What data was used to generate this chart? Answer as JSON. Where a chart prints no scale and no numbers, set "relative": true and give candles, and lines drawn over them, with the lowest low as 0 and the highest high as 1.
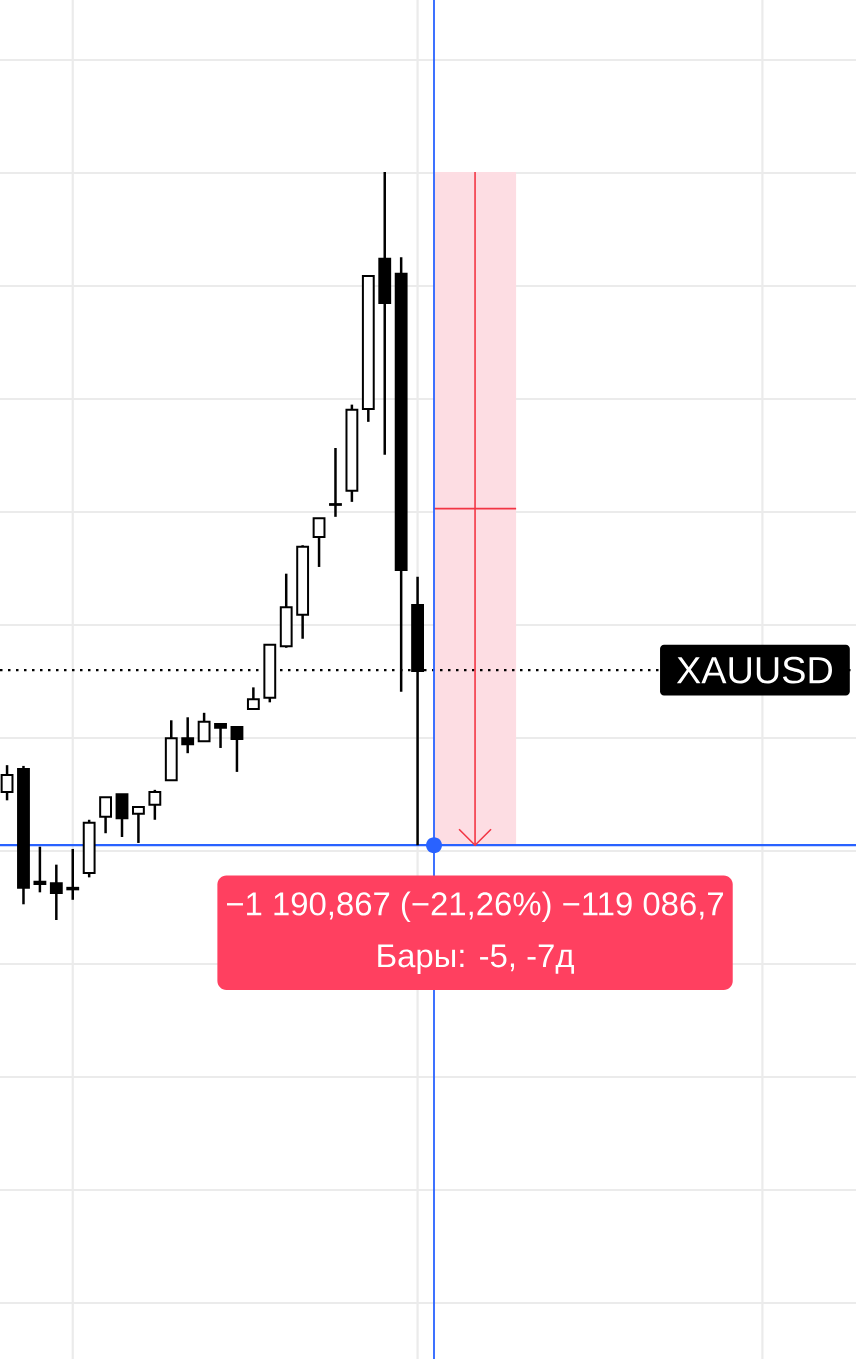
{
  "chart_data": {
    "type": "candlestick",
    "relative": true,
    "grid": true,
    "categories": [
      null,
      null,
      null,
      null,
      null,
      null,
      null,
      null,
      null,
      null,
      null,
      null,
      null,
      null,
      null,
      null,
      null,
      null,
      null,
      null,
      null,
      null,
      null,
      null,
      null,
      null,
      null,
      null,
      null,
      null,
      null,
      null,
      null,
      null,
      null,
      null,
      null,
      null,
      null,
      null,
      null,
      null,
      null,
      null,
      null,
      null,
      null,
      null,
      null,
      null,
      null,
      null
    ],
    "ohlc": [
      [
        0.171,
        0.207,
        0.16,
        0.194
      ],
      [
        0.202,
        0.206,
        0.021,
        0.043
      ],
      [
        0.051,
        0.098,
        0.037,
        0.048
      ],
      [
        0.049,
        0.074,
        0,
        0.036
      ],
      [
        0.043,
        0.095,
        0.027,
        0.041
      ],
      [
        0.063,
        0.134,
        0.057,
        0.13
      ],
      [
        0.138,
        0.164,
        0.116,
        0.164
      ],
      [
        0.168,
        0.168,
        0.111,
        0.136
      ],
      [
        0.142,
        0.151,
        0.103,
        0.151
      ],
      [
        0.154,
        0.174,
        0.134,
        0.171
      ],
      [
        0.187,
        0.267,
        0.187,
        0.243
      ],
      [
        0.243,
        0.271,
        0.223,
        0.235
      ],
      [
        0.239,
        0.277,
        0.239,
        0.265
      ],
      [
        0.262,
        0.262,
        0.23,
        0.257
      ],
      [
        0.258,
        0.258,
        0.198,
        0.242
      ],
      [
        0.282,
        0.311,
        0.281,
        0.295
      ],
      [
        0.297,
        0.368,
        0.291,
        0.368
      ],
      [
        0.366,
        0.463,
        0.364,
        0.418
      ],
      [
        0.408,
        0.501,
        0.376,
        0.499
      ],
      [
        0.512,
        0.537,
        0.472,
        0.537
      ],
      [
        0.556,
        0.631,
        0.539,
        0.555
      ],
      [
        0.574,
        0.689,
        0.559,
        0.682
      ],
      [
        0.683,
        0.862,
        0.666,
        0.861
      ],
      [
        0.884,
        1,
        0.622,
        0.825
      ],
      [
        0.864,
        0.886,
        0.305,
        0.468
      ],
      [
        0.421,
        0.459,
        0.1,
        0.333
      ],
      null,
      null,
      null,
      null,
      null,
      null,
      null,
      null,
      null,
      null,
      null,
      null,
      null,
      null,
      null,
      null,
      null,
      null,
      null,
      null,
      null,
      null,
      null,
      null,
      null,
      null
    ],
    "ref_lines": [
      {
        "axis": "y",
        "value": 0.334,
        "label": "XAUUSD",
        "color": "#000000",
        "line_style": "dotted"
      },
      {
        "axis": "y",
        "value": 0.1,
        "color": "#2962ff",
        "line_style": "solid"
      }
    ],
    "bands": [
      {
        "axis": "y",
        "from": 0.1,
        "to": 1,
        "color": "#fddde3"
      }
    ],
    "annotations": [
      "−1 190,867 (−21,26%) −119 086,7",
      "Бары: -5, -7д"
    ]
  }
}
